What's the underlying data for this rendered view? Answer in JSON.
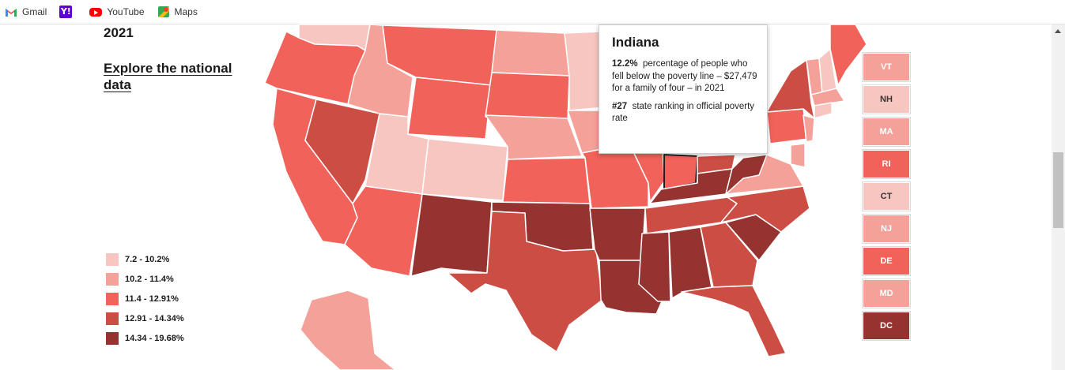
{
  "bookmarks": [
    {
      "label": "Gmail",
      "icon": "gmail-icon"
    },
    {
      "label": "YouTube",
      "icon": "youtube-icon"
    },
    {
      "label": "Maps",
      "icon": "maps-icon"
    }
  ],
  "yahoo_glyph": "Y!",
  "page": {
    "year": "2021",
    "explore_link": "Explore the national data"
  },
  "legend": [
    {
      "label": "7.2 - 10.2%",
      "color": "#f8c6c1"
    },
    {
      "label": "10.2 - 11.4%",
      "color": "#f4a199"
    },
    {
      "label": "11.4 - 12.91%",
      "color": "#f0625a"
    },
    {
      "label": "12.91 - 14.34%",
      "color": "#cc4d44"
    },
    {
      "label": "14.34 - 19.68%",
      "color": "#953330"
    }
  ],
  "tooltip": {
    "state": "Indiana",
    "rate_value": "12.2%",
    "rate_text": "percentage of people who fell below the poverty line – $27,479 for a family of four – in 2021",
    "rank_value": "#27",
    "rank_text": "state ranking in official poverty rate"
  },
  "small_states": [
    {
      "abbr": "VT",
      "color": "#f4a199",
      "text_color": "#ffffff"
    },
    {
      "abbr": "NH",
      "color": "#f8c6c1",
      "text_color": "#333333"
    },
    {
      "abbr": "MA",
      "color": "#f4a199",
      "text_color": "#ffffff"
    },
    {
      "abbr": "RI",
      "color": "#f0625a",
      "text_color": "#ffffff"
    },
    {
      "abbr": "CT",
      "color": "#f8c6c1",
      "text_color": "#333333"
    },
    {
      "abbr": "NJ",
      "color": "#f4a199",
      "text_color": "#ffffff"
    },
    {
      "abbr": "DE",
      "color": "#f0625a",
      "text_color": "#ffffff"
    },
    {
      "abbr": "MD",
      "color": "#f4a199",
      "text_color": "#ffffff"
    },
    {
      "abbr": "DC",
      "color": "#953330",
      "text_color": "#ffffff"
    }
  ],
  "map_states": [
    {
      "state": "Washington",
      "bin": 0
    },
    {
      "state": "Oregon",
      "bin": 2
    },
    {
      "state": "California",
      "bin": 2
    },
    {
      "state": "Nevada",
      "bin": 3
    },
    {
      "state": "Idaho",
      "bin": 1
    },
    {
      "state": "Montana",
      "bin": 2
    },
    {
      "state": "Wyoming",
      "bin": 2
    },
    {
      "state": "Utah",
      "bin": 0
    },
    {
      "state": "Colorado",
      "bin": 0
    },
    {
      "state": "Arizona",
      "bin": 2
    },
    {
      "state": "New Mexico",
      "bin": 4
    },
    {
      "state": "North Dakota",
      "bin": 1
    },
    {
      "state": "South Dakota",
      "bin": 2
    },
    {
      "state": "Nebraska",
      "bin": 1
    },
    {
      "state": "Kansas",
      "bin": 2
    },
    {
      "state": "Oklahoma",
      "bin": 4
    },
    {
      "state": "Texas",
      "bin": 3
    },
    {
      "state": "Minnesota",
      "bin": 0
    },
    {
      "state": "Iowa",
      "bin": 1
    },
    {
      "state": "Missouri",
      "bin": 2
    },
    {
      "state": "Arkansas",
      "bin": 4
    },
    {
      "state": "Louisiana",
      "bin": 4
    },
    {
      "state": "Illinois",
      "bin": 2
    },
    {
      "state": "Indiana",
      "bin": 2
    },
    {
      "state": "Ohio",
      "bin": 3
    },
    {
      "state": "Kentucky",
      "bin": 4
    },
    {
      "state": "Tennessee",
      "bin": 3
    },
    {
      "state": "Mississippi",
      "bin": 4
    },
    {
      "state": "Alabama",
      "bin": 4
    },
    {
      "state": "Georgia",
      "bin": 3
    },
    {
      "state": "Florida",
      "bin": 3
    },
    {
      "state": "South Carolina",
      "bin": 4
    },
    {
      "state": "North Carolina",
      "bin": 3
    },
    {
      "state": "Virginia",
      "bin": 1
    },
    {
      "state": "West Virginia",
      "bin": 4
    },
    {
      "state": "Pennsylvania",
      "bin": 2
    },
    {
      "state": "New York",
      "bin": 3
    },
    {
      "state": "Maine",
      "bin": 2
    },
    {
      "state": "Vermont",
      "bin": 1
    },
    {
      "state": "New Hampshire",
      "bin": 0
    },
    {
      "state": "Massachusetts",
      "bin": 1
    },
    {
      "state": "Connecticut",
      "bin": 0
    },
    {
      "state": "New Jersey",
      "bin": 1
    },
    {
      "state": "Alaska",
      "bin": 1
    }
  ]
}
